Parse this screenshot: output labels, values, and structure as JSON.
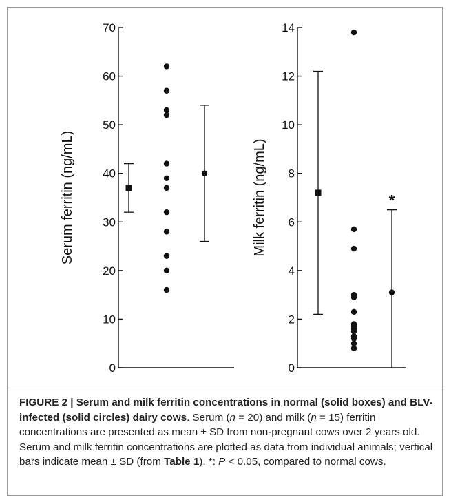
{
  "chart_data": [
    {
      "type": "scatter",
      "ylabel": "Serum ferritin (ng/mL)",
      "ylim": [
        0,
        70
      ],
      "yticks": [
        0,
        10,
        20,
        30,
        40,
        50,
        60,
        70
      ],
      "normal_mean_sd": {
        "mean": 37,
        "lower": 32,
        "upper": 42,
        "marker": "square"
      },
      "blv_individuals": [
        62,
        57,
        53,
        52,
        42,
        39,
        37,
        32,
        28,
        23,
        20,
        16
      ],
      "blv_mean_sd": {
        "mean": 40,
        "lower": 26,
        "upper": 54,
        "marker": "circle"
      },
      "annotation": ""
    },
    {
      "type": "scatter",
      "ylabel": "Milk ferritin (ng/mL)",
      "ylim": [
        0,
        14
      ],
      "yticks": [
        0,
        2,
        4,
        6,
        8,
        10,
        12,
        14
      ],
      "normal_mean_sd": {
        "mean": 7.2,
        "lower": 2.2,
        "upper": 12.2,
        "marker": "square"
      },
      "blv_individuals": [
        13.8,
        5.7,
        4.9,
        3.0,
        2.9,
        2.3,
        1.8,
        1.7,
        1.6,
        1.5,
        1.3,
        1.2,
        1.0,
        0.8
      ],
      "blv_mean_sd": {
        "mean": 3.1,
        "lower": 0,
        "upper": 6.5,
        "marker": "circle"
      },
      "annotation": "*"
    }
  ],
  "caption": {
    "figure_label": "FIGURE 2 | Serum and milk ferritin concentrations in normal (solid boxes) and BLV-infected (solid circles) dairy cows",
    "text_1": ". Serum (",
    "n1": "n",
    "text_2": " = 20) and milk (",
    "n2": "n",
    "text_3": " = 15) ferritin concentrations are presented as mean ± SD from non-pregnant cows over 2 years old. Serum and milk ferritin concentrations are plotted as data from individual animals; vertical bars indicate mean ± SD (from ",
    "table_ref": "Table 1",
    "text_4": "). *: ",
    "p": "P",
    "text_5": " < 0.05, compared to normal cows."
  }
}
